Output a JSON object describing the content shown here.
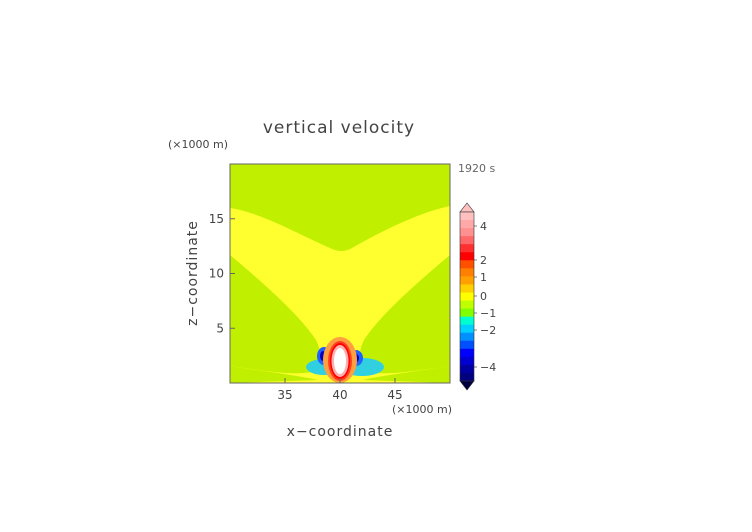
{
  "chart_data": {
    "type": "heatmap",
    "title": "vertical velocity",
    "xlabel": "x−coordinate",
    "ylabel": "z−coordinate",
    "x_unit": "(×1000 m)",
    "z_unit": "(×1000 m)",
    "timestamp": "1920 s",
    "xlim": [
      30,
      50
    ],
    "ylim": [
      0,
      20
    ],
    "x_ticks": [
      35,
      40,
      45
    ],
    "x_tick_labels": [
      "35",
      "40",
      "45"
    ],
    "y_ticks": [
      5,
      10,
      15
    ],
    "y_tick_labels": [
      "5",
      "10",
      "15"
    ],
    "colorbar": {
      "tick_values": [
        4,
        2,
        1,
        0,
        -1,
        -2,
        -4
      ],
      "tick_labels": [
        "4",
        "2",
        "1",
        "0",
        "−1",
        "−2",
        "−4"
      ],
      "levels": [
        {
          "color": "#ffc0c0"
        },
        {
          "color": "#ffa8a8"
        },
        {
          "color": "#ff9090"
        },
        {
          "color": "#ff6868"
        },
        {
          "color": "#ff3030"
        },
        {
          "color": "#ff0000"
        },
        {
          "color": "#ff5000"
        },
        {
          "color": "#ff8000"
        },
        {
          "color": "#ffa000"
        },
        {
          "color": "#ffd000"
        },
        {
          "color": "#ffff00"
        },
        {
          "color": "#bfff00"
        },
        {
          "color": "#80ff00"
        },
        {
          "color": "#00ffd0"
        },
        {
          "color": "#00d0ff"
        },
        {
          "color": "#0090ff"
        },
        {
          "color": "#0050ff"
        },
        {
          "color": "#0000ff"
        },
        {
          "color": "#0000d0"
        },
        {
          "color": "#0000a0"
        },
        {
          "color": "#000080"
        }
      ]
    },
    "fields": {
      "background_color": "#c0f000",
      "positive_region_color": "#ffff30",
      "updraft_colors": [
        "#ffa040",
        "#ff4020",
        "#ff0000",
        "#ffb0b0",
        "#ffffff"
      ],
      "downdraft_colors": [
        "#30d0e0",
        "#2060ff",
        "#0000c0"
      ]
    }
  }
}
